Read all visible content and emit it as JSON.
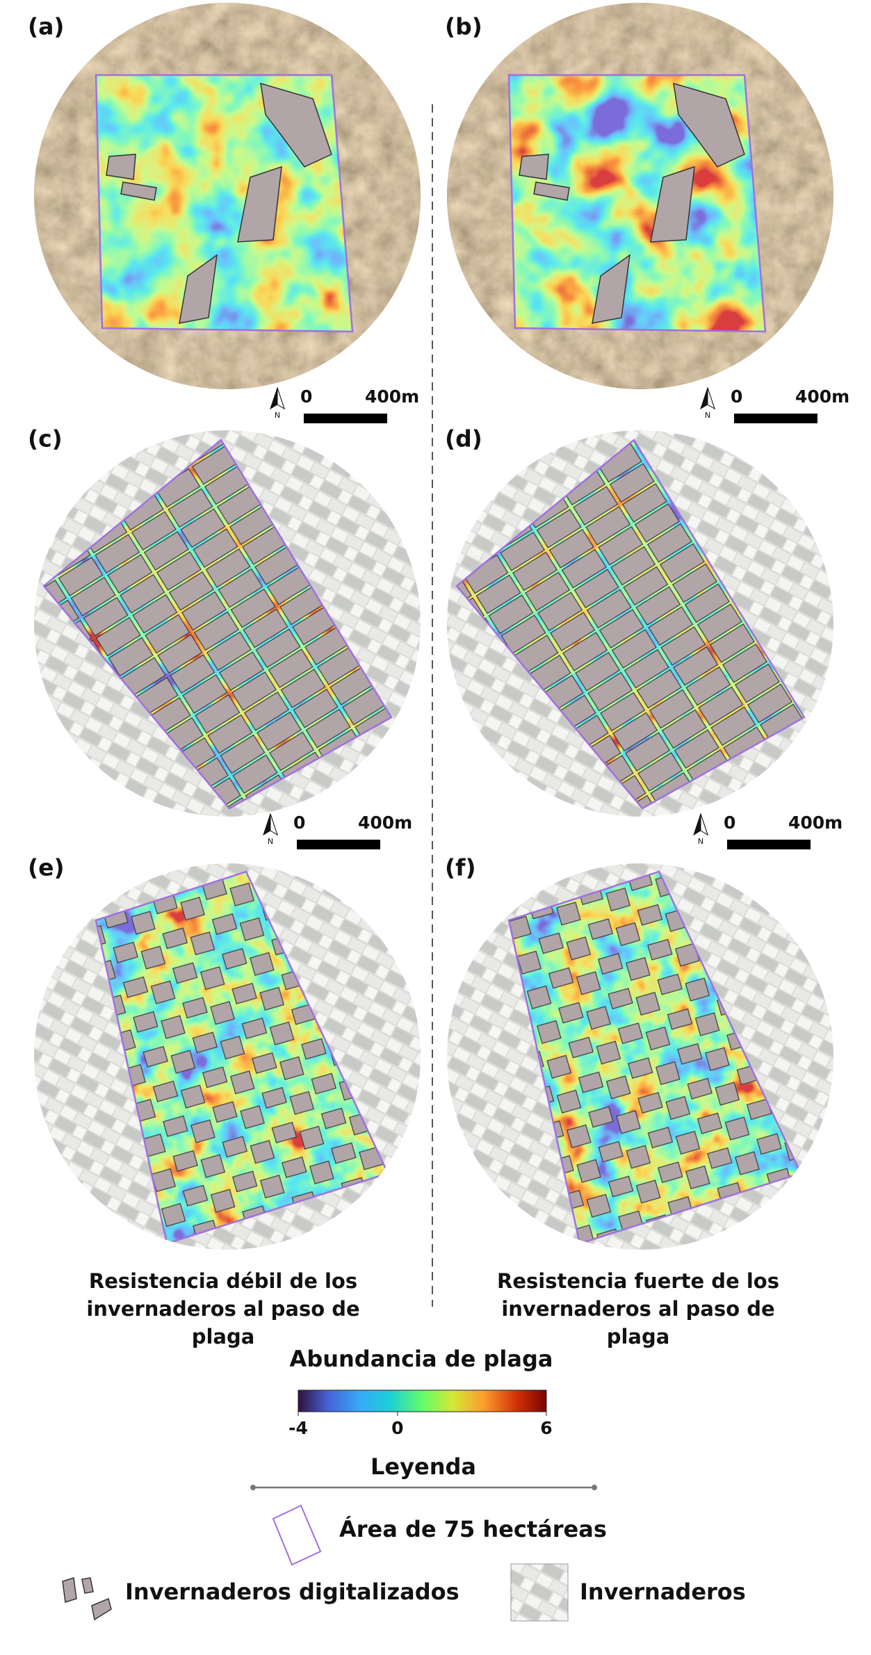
{
  "panels": [
    {
      "label": "(a)"
    },
    {
      "label": "(b)"
    },
    {
      "label": "(c)"
    },
    {
      "label": "(d)"
    },
    {
      "label": "(e)"
    },
    {
      "label": "(f)"
    }
  ],
  "scale_bars": [
    {
      "north": "N",
      "start": "0",
      "end": "400m"
    },
    {
      "north": "N",
      "start": "0",
      "end": "400m"
    },
    {
      "north": "N",
      "start": "0",
      "end": "400m"
    },
    {
      "north": "N",
      "start": "0",
      "end": "400m"
    }
  ],
  "captions": [
    [
      "Resistencia débil de los",
      "invernaderos al paso de",
      "plaga"
    ],
    [
      "Resistencia fuerte de los",
      "invernaderos al paso de",
      "plaga"
    ]
  ],
  "colorbar": {
    "title": "Abundancia de plaga",
    "lim": [
      -4,
      6
    ],
    "ticks": [
      -4,
      0,
      6
    ]
  },
  "legend": {
    "title": "Leyenda",
    "items": [
      "Área de 75 hectáreas",
      "Invernaderos digitalizados",
      "Invernaderos"
    ]
  }
}
